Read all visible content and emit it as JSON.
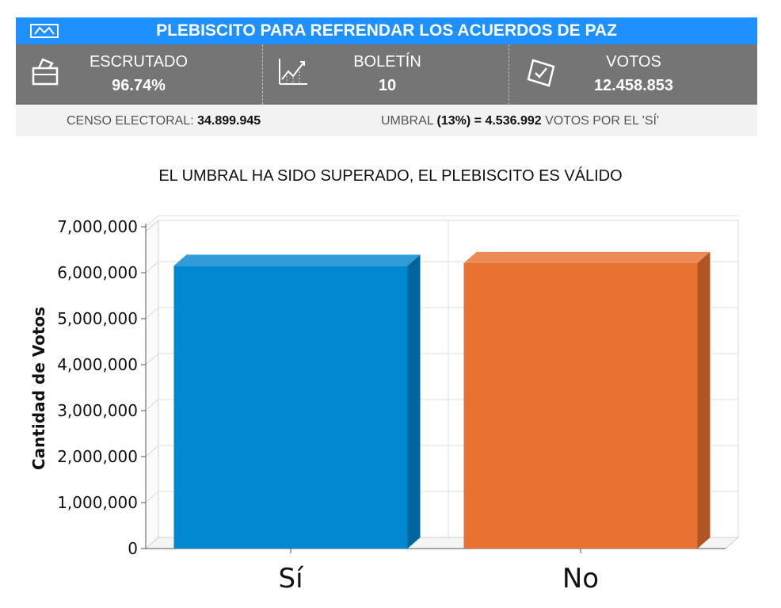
{
  "header": {
    "title": "PLEBISCITO PARA REFRENDAR LOS ACUERDOS DE PAZ",
    "background_color": "#1E90FF",
    "logo_icon": "government-logo-icon"
  },
  "stats": [
    {
      "label": "ESCRUTADO",
      "value": "96.74%",
      "icon": "ballot-box-icon"
    },
    {
      "label": "BOLETÍN",
      "value": "10",
      "icon": "line-chart-icon"
    },
    {
      "label": "VOTOS",
      "value": "12.458.853",
      "icon": "ballot-check-icon"
    }
  ],
  "info": {
    "censo_label": "CENSO ELECTORAL:",
    "censo_value": "34.899.945",
    "umbral_label": "UMBRAL",
    "umbral_value": "(13%) = 4.536.992",
    "umbral_suffix": "VOTOS POR EL 'SÍ'"
  },
  "result_message": "EL UMBRAL HA SIDO SUPERADO, EL PLEBISCITO ES VÁLIDO",
  "chart_data": {
    "type": "bar",
    "categories": [
      "Sí",
      "No"
    ],
    "values": [
      6150000,
      6210000
    ],
    "colors": [
      "#0288D1",
      "#E97132"
    ],
    "ylabel": "Cantidad de Votos",
    "ylim": [
      0,
      7000000
    ],
    "yticks": [
      0,
      1000000,
      2000000,
      3000000,
      4000000,
      5000000,
      6000000,
      7000000
    ],
    "ytick_labels": [
      "0",
      "1,000,000",
      "2,000,000",
      "3,000,000",
      "4,000,000",
      "5,000,000",
      "6,000,000",
      "7,000,000"
    ],
    "grid": true,
    "style": "3d"
  }
}
